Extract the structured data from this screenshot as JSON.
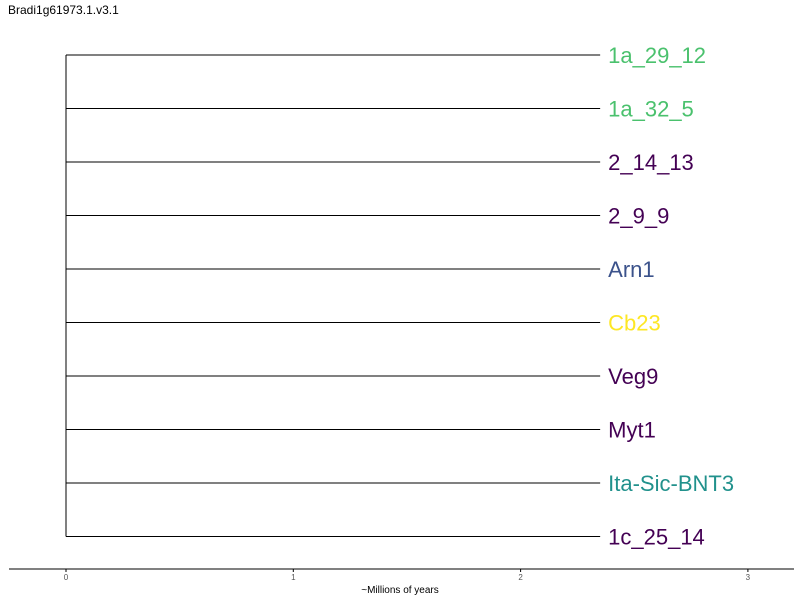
{
  "title": "Bradi1g61973.1.v3.1",
  "axis": {
    "label": "~Millions of years",
    "ticks": [
      "0",
      "1",
      "2",
      "3"
    ],
    "range": [
      0,
      3
    ]
  },
  "tree": {
    "branch_length": 2.35,
    "leaves": [
      {
        "label": "1a_29_12",
        "color": "#4ac16d"
      },
      {
        "label": "1a_32_5",
        "color": "#4ac16d"
      },
      {
        "label": "2_14_13",
        "color": "#440154"
      },
      {
        "label": "2_9_9",
        "color": "#440154"
      },
      {
        "label": "Arn1",
        "color": "#3b528b"
      },
      {
        "label": "Cb23",
        "color": "#fde725"
      },
      {
        "label": "Veg9",
        "color": "#440154"
      },
      {
        "label": "Myt1",
        "color": "#440154"
      },
      {
        "label": "Ita-Sic-BNT3",
        "color": "#21918c"
      },
      {
        "label": "1c_25_14",
        "color": "#440154"
      }
    ]
  }
}
